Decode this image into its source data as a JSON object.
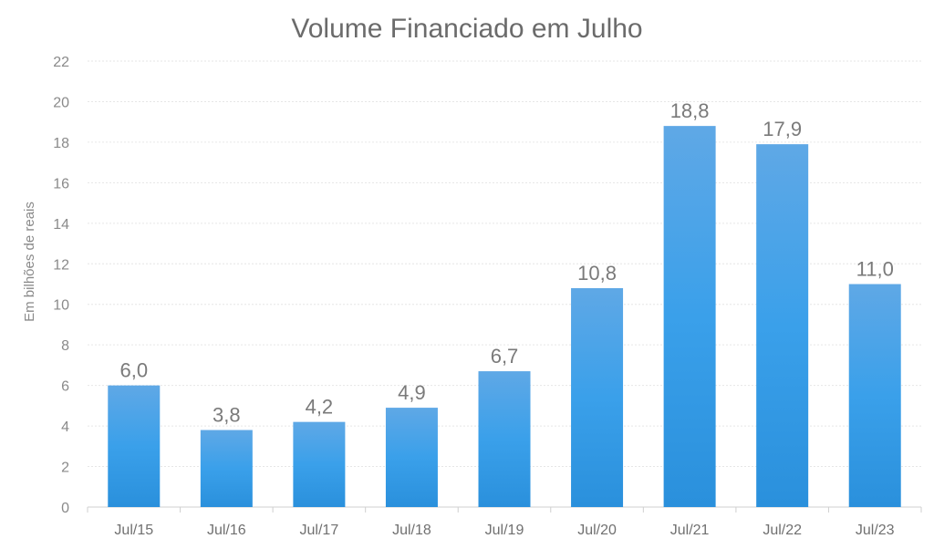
{
  "chart_data": {
    "type": "bar",
    "title": "Volume Financiado em Julho",
    "ylabel": "Em bilhões de reais",
    "xlabel": "",
    "categories": [
      "Jul/15",
      "Jul/16",
      "Jul/17",
      "Jul/18",
      "Jul/19",
      "Jul/20",
      "Jul/21",
      "Jul/22",
      "Jul/23"
    ],
    "values": [
      6.0,
      3.8,
      4.2,
      4.9,
      6.7,
      10.8,
      18.8,
      17.9,
      11.0
    ],
    "value_labels": [
      "6,0",
      "3,8",
      "4,2",
      "4,9",
      "6,7",
      "10,8",
      "18,8",
      "17,9",
      "11,0"
    ],
    "ylim": [
      0,
      22
    ],
    "yticks": [
      0,
      2,
      4,
      6,
      8,
      10,
      12,
      14,
      16,
      18,
      20,
      22
    ],
    "grid": true,
    "legend": "none",
    "colors": {
      "bar_top": "#5fa8e6",
      "bar_bottom": "#2a90dc"
    }
  }
}
